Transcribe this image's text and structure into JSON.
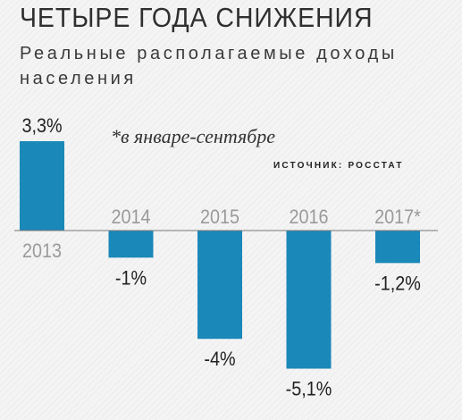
{
  "title": "ЧЕТЫРЕ ГОДА СНИЖЕНИЯ",
  "subtitle": "Реальные располагаемые доходы населения",
  "note": "*в январе-сентябре",
  "source": "ИСТОЧНИК: РОССТАТ",
  "colors": {
    "bar": "#1a88b8",
    "axis": "#777777",
    "year_label": "#9a9a9a",
    "value_label": "#222222"
  },
  "chart_data": {
    "type": "bar",
    "title": "ЧЕТЫРЕ ГОДА СНИЖЕНИЯ",
    "subtitle": "Реальные располагаемые доходы населения",
    "categories": [
      "2013",
      "2014",
      "2015",
      "2016",
      "2017*"
    ],
    "values": [
      3.3,
      -1,
      -4,
      -5.1,
      -1.2
    ],
    "value_labels": [
      "3,3%",
      "-1%",
      "-4%",
      "-5,1%",
      "-1,2%"
    ],
    "unit": "%",
    "ylim": [
      -5.1,
      3.3
    ],
    "grid": false,
    "legend": "none"
  }
}
